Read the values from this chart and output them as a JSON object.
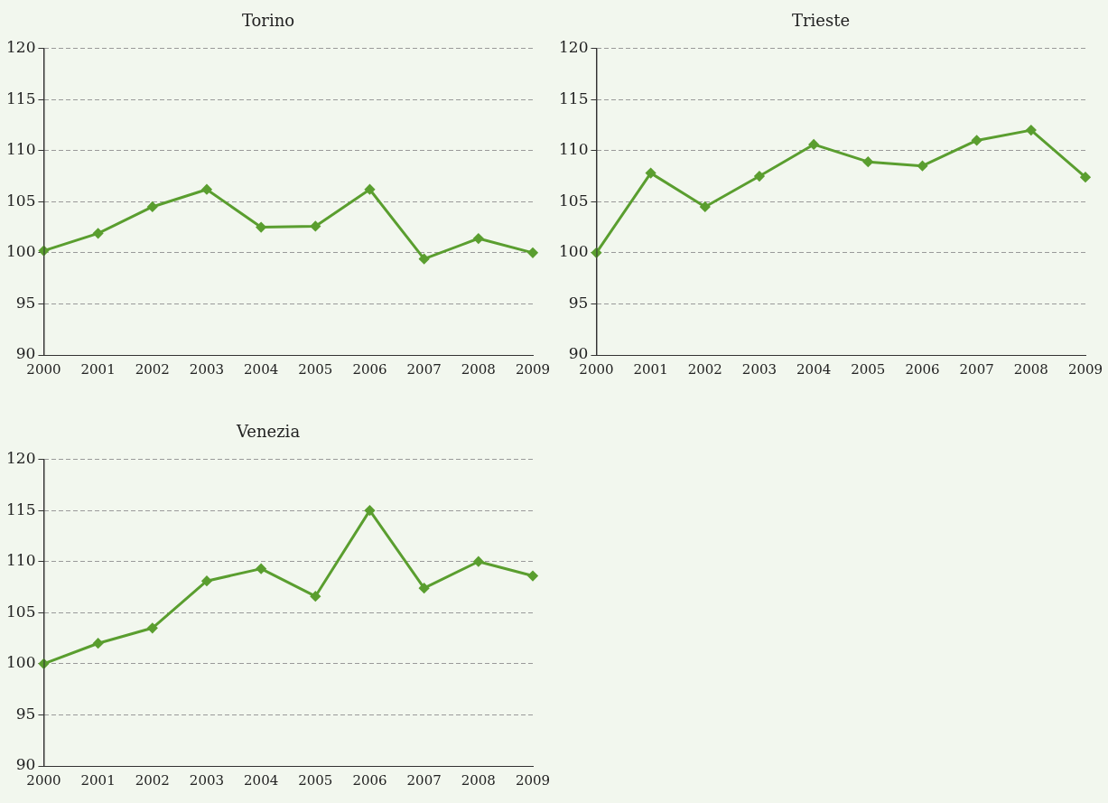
{
  "chart_data": [
    {
      "type": "line",
      "title": "Torino",
      "categories": [
        "2000",
        "2001",
        "2002",
        "2003",
        "2004",
        "2005",
        "2006",
        "2007",
        "2008",
        "2009"
      ],
      "series": [
        {
          "color": "#5a9e2f",
          "values": [
            100.2,
            101.9,
            104.5,
            106.2,
            102.5,
            102.6,
            106.2,
            99.4,
            101.4,
            100
          ]
        }
      ],
      "ylim": [
        90,
        120
      ],
      "yticks": [
        90,
        95,
        100,
        105,
        110,
        115,
        120
      ],
      "grid": "y",
      "marker": "diamond",
      "line_style": "solid"
    },
    {
      "type": "line",
      "title": "Trieste",
      "categories": [
        "2000",
        "2001",
        "2002",
        "2003",
        "2004",
        "2005",
        "2006",
        "2007",
        "2008",
        "2009"
      ],
      "series": [
        {
          "color": "#5a9e2f",
          "values": [
            100,
            107.8,
            104.5,
            107.5,
            110.6,
            108.9,
            108.5,
            111,
            112,
            107.4
          ]
        }
      ],
      "ylim": [
        90,
        120
      ],
      "yticks": [
        90,
        95,
        100,
        105,
        110,
        115,
        120
      ],
      "grid": "y",
      "marker": "diamond",
      "line_style": "solid"
    },
    {
      "type": "line",
      "title": "Venezia",
      "categories": [
        "2000",
        "2001",
        "2002",
        "2003",
        "2004",
        "2005",
        "2006",
        "2007",
        "2008",
        "2009"
      ],
      "series": [
        {
          "color": "#5a9e2f",
          "values": [
            100,
            102,
            103.5,
            108.1,
            109.3,
            106.6,
            115,
            107.4,
            110,
            108.6
          ]
        }
      ],
      "ylim": [
        90,
        120
      ],
      "yticks": [
        90,
        95,
        100,
        105,
        110,
        115,
        120
      ],
      "grid": "y",
      "marker": "diamond",
      "line_style": "solid"
    }
  ]
}
